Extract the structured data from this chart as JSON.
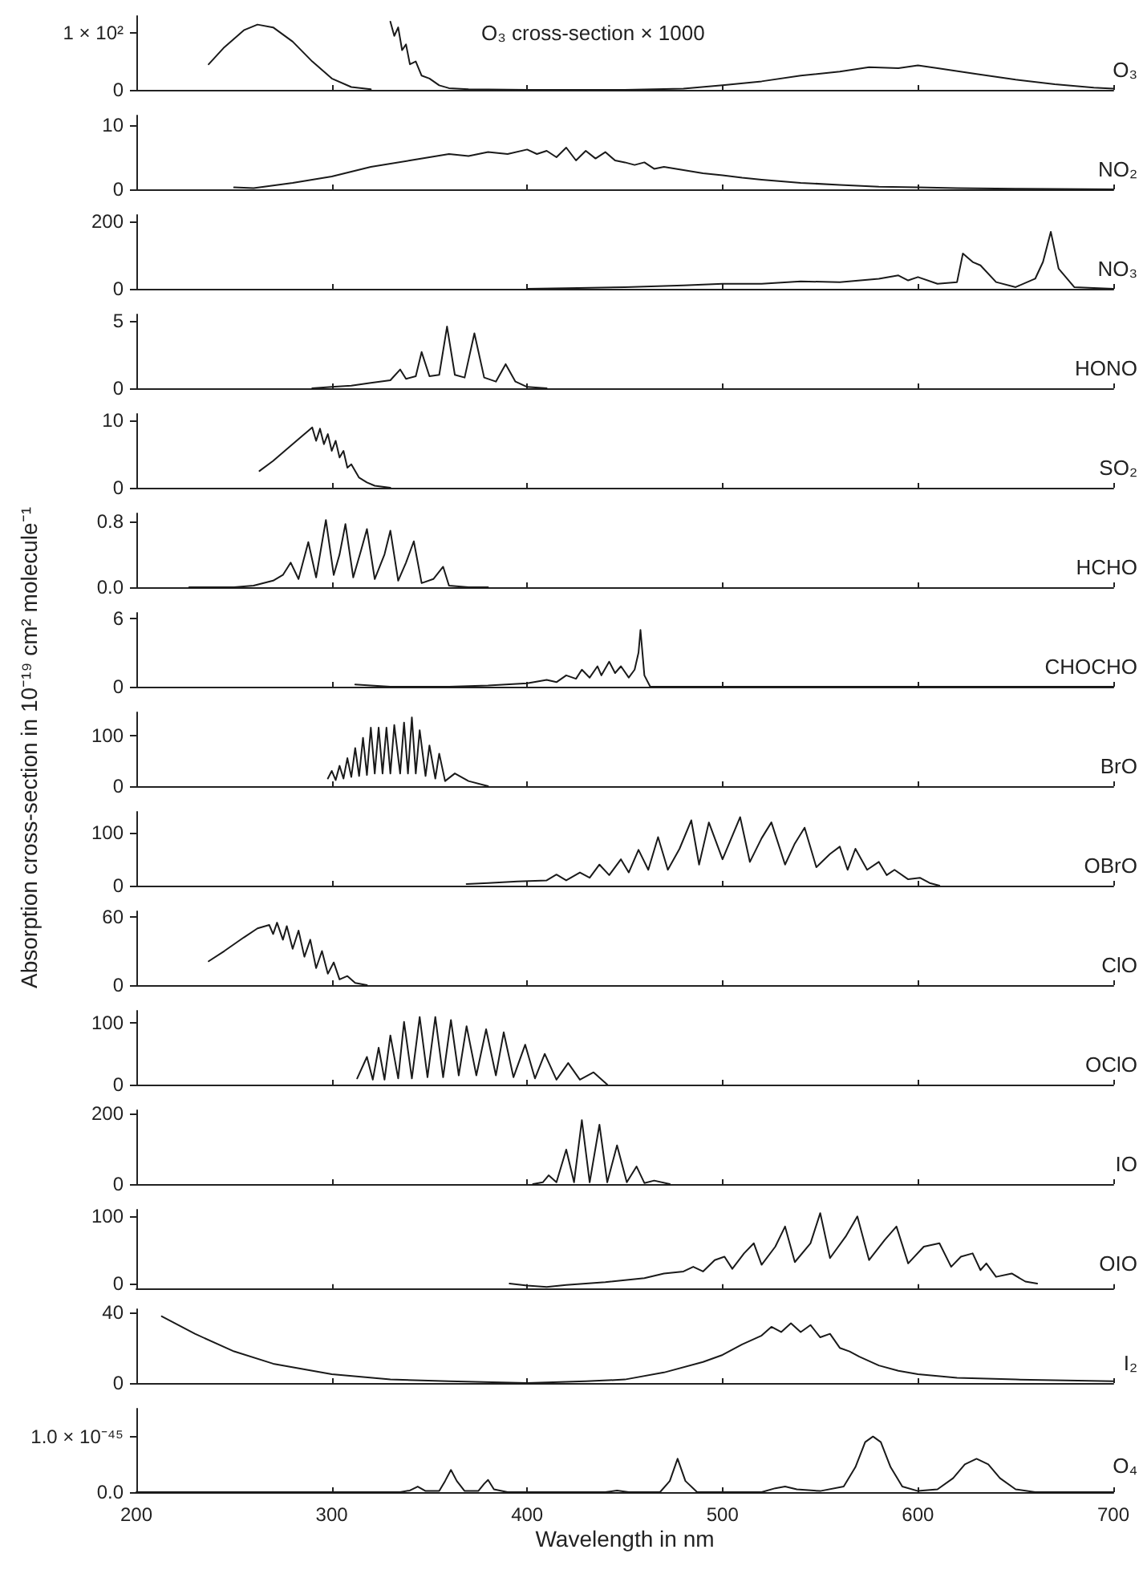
{
  "chart_data": [
    {
      "type": "line",
      "annotations": [
        "O₃ cross-section × 1000"
      ],
      "x": [
        237,
        245,
        255,
        262,
        270,
        280,
        290,
        300,
        310,
        320,
        329,
        330,
        332,
        334,
        336,
        338,
        340,
        343,
        346,
        350,
        355,
        360,
        370,
        400,
        450,
        480,
        500,
        520,
        540,
        560,
        575,
        590,
        600,
        610,
        630,
        650,
        670,
        690,
        700
      ],
      "series": [
        {
          "name": "O₃",
          "color": "#1a1a1a",
          "values": [
            45,
            75,
            105,
            115,
            110,
            85,
            50,
            20,
            5,
            1,
            null,
            120,
            95,
            110,
            70,
            80,
            45,
            50,
            25,
            20,
            8,
            3,
            1,
            0,
            0,
            2,
            8,
            15,
            25,
            32,
            40,
            38,
            43,
            38,
            28,
            18,
            10,
            4,
            2
          ]
        }
      ],
      "xlim": [
        200,
        700
      ],
      "xticks": [
        200,
        300,
        400,
        500,
        600,
        700
      ],
      "ylim": [
        0,
        130
      ],
      "yticks": [
        0,
        {
          "value": 100,
          "label": "1 × 10²"
        }
      ],
      "tick_labels": "y"
    },
    {
      "type": "line",
      "x": [
        250,
        260,
        280,
        300,
        320,
        340,
        350,
        360,
        370,
        380,
        390,
        400,
        405,
        410,
        415,
        420,
        425,
        430,
        435,
        440,
        445,
        450,
        455,
        460,
        465,
        470,
        480,
        490,
        500,
        510,
        520,
        540,
        560,
        580,
        600,
        620,
        650,
        700
      ],
      "series": [
        {
          "name": "NO₂",
          "color": "#1a1a1a",
          "values": [
            0.3,
            0.2,
            1,
            2,
            3.5,
            4.5,
            5,
            5.5,
            5.2,
            5.8,
            5.5,
            6.2,
            5.5,
            6,
            5,
            6.5,
            4.5,
            6,
            4.8,
            5.8,
            4.5,
            4.2,
            3.8,
            4.2,
            3.2,
            3.5,
            3,
            2.5,
            2.2,
            1.8,
            1.5,
            1,
            0.7,
            0.4,
            0.3,
            0.2,
            0.1,
            0
          ]
        }
      ],
      "xlim": [
        200,
        700
      ],
      "xticks": [
        200,
        300,
        400,
        500,
        600,
        700
      ],
      "ylim": [
        0,
        11.5
      ],
      "yticks": [
        0,
        10
      ],
      "tick_labels": "y"
    },
    {
      "type": "line",
      "x": [
        400,
        420,
        450,
        480,
        500,
        520,
        540,
        560,
        580,
        590,
        595,
        600,
        610,
        620,
        623,
        628,
        632,
        640,
        650,
        660,
        664,
        668,
        672,
        680,
        700
      ],
      "series": [
        {
          "name": "NO₃",
          "color": "#1a1a1a",
          "values": [
            0,
            2,
            5,
            10,
            15,
            15,
            22,
            20,
            30,
            40,
            25,
            35,
            15,
            20,
            105,
            80,
            70,
            20,
            5,
            30,
            80,
            170,
            60,
            5,
            0
          ]
        }
      ],
      "xlim": [
        200,
        700
      ],
      "xticks": [
        200,
        300,
        400,
        500,
        600,
        700
      ],
      "ylim": [
        0,
        220
      ],
      "yticks": [
        0,
        200
      ],
      "tick_labels": "y"
    },
    {
      "type": "line",
      "x": [
        290,
        300,
        310,
        320,
        330,
        335,
        338,
        343,
        346,
        350,
        355,
        359,
        363,
        368,
        373,
        378,
        384,
        389,
        394,
        400,
        410
      ],
      "series": [
        {
          "name": "HONO",
          "color": "#1a1a1a",
          "values": [
            0,
            0.1,
            0.2,
            0.4,
            0.6,
            1.4,
            0.7,
            0.9,
            2.7,
            0.9,
            1.0,
            4.6,
            1.0,
            0.8,
            4.1,
            0.8,
            0.5,
            1.8,
            0.5,
            0.1,
            0
          ]
        }
      ],
      "xlim": [
        200,
        700
      ],
      "xticks": [
        200,
        300,
        400,
        500,
        600,
        700
      ],
      "ylim": [
        0,
        5.5
      ],
      "yticks": [
        0,
        5
      ],
      "tick_labels": "y"
    },
    {
      "type": "line",
      "x": [
        263,
        270,
        278,
        284,
        288,
        290,
        292,
        294,
        296,
        298,
        300,
        302,
        304,
        306,
        308,
        310,
        314,
        318,
        322,
        330
      ],
      "series": [
        {
          "name": "SO₂",
          "color": "#1a1a1a",
          "values": [
            2.5,
            4,
            6,
            7.5,
            8.5,
            9,
            7,
            8.8,
            6.5,
            8,
            5.5,
            7,
            4.5,
            5.5,
            3,
            3.5,
            1.5,
            0.8,
            0.3,
            0
          ]
        }
      ],
      "xlim": [
        200,
        700
      ],
      "xticks": [
        200,
        300,
        400,
        500,
        600,
        700
      ],
      "ylim": [
        0,
        11
      ],
      "yticks": [
        0,
        10
      ],
      "tick_labels": "y"
    },
    {
      "type": "line",
      "x": [
        227,
        250,
        260,
        270,
        275,
        279,
        283,
        288,
        292,
        297,
        301,
        304,
        307,
        311,
        315,
        318,
        322,
        327,
        330,
        334,
        338,
        342,
        346,
        352,
        357,
        360,
        370,
        380
      ],
      "series": [
        {
          "name": "HCHO",
          "color": "#1a1a1a",
          "values": [
            0,
            0,
            0.02,
            0.08,
            0.15,
            0.3,
            0.1,
            0.55,
            0.12,
            0.82,
            0.15,
            0.4,
            0.77,
            0.12,
            0.45,
            0.71,
            0.1,
            0.4,
            0.69,
            0.08,
            0.3,
            0.56,
            0.05,
            0.1,
            0.25,
            0.02,
            0,
            0
          ]
        }
      ],
      "xlim": [
        200,
        700
      ],
      "xticks": [
        200,
        300,
        400,
        500,
        600,
        700
      ],
      "ylim": [
        0,
        0.9
      ],
      "yticks": [
        {
          "value": 0,
          "label": "0.0"
        },
        0.8
      ],
      "tick_labels": "y"
    },
    {
      "type": "line",
      "x": [
        312,
        320,
        330,
        360,
        380,
        400,
        410,
        415,
        420,
        425,
        428,
        432,
        436,
        438,
        442,
        445,
        448,
        452,
        455,
        457,
        458,
        460,
        463,
        700
      ],
      "series": [
        {
          "name": "CHOCHO",
          "color": "#1a1a1a",
          "values": [
            0.2,
            0.1,
            0,
            0,
            0.1,
            0.3,
            0.6,
            0.4,
            1.0,
            0.7,
            1.5,
            0.8,
            1.8,
            1.0,
            2.2,
            1.2,
            1.8,
            0.8,
            1.5,
            3,
            5,
            1,
            0,
            0
          ]
        }
      ],
      "xlim": [
        200,
        700
      ],
      "xticks": [
        200,
        300,
        400,
        500,
        600,
        700
      ],
      "ylim": [
        0,
        6.5
      ],
      "yticks": [
        0,
        6
      ],
      "tick_labels": "y"
    },
    {
      "type": "line",
      "ylabel": "Absorption cross-section in 10⁻¹⁹ cm² molecule⁻¹",
      "x": [
        298,
        300,
        302,
        304,
        306,
        308,
        310,
        312,
        314,
        316,
        318,
        320,
        322,
        324,
        326,
        328,
        330,
        332,
        335,
        337,
        339,
        341,
        343,
        345,
        348,
        350,
        353,
        355,
        358,
        363,
        370,
        380
      ],
      "series": [
        {
          "name": "BrO",
          "color": "#1a1a1a",
          "values": [
            15,
            30,
            12,
            40,
            15,
            55,
            18,
            75,
            20,
            95,
            22,
            115,
            25,
            115,
            25,
            115,
            25,
            120,
            25,
            125,
            25,
            135,
            25,
            110,
            20,
            80,
            15,
            64,
            10,
            25,
            10,
            0
          ]
        }
      ],
      "xlim": [
        200,
        700
      ],
      "xticks": [
        200,
        300,
        400,
        500,
        600,
        700
      ],
      "ylim": [
        0,
        145
      ],
      "yticks": [
        0,
        100
      ],
      "tick_labels": "y"
    },
    {
      "type": "line",
      "x": [
        369,
        380,
        395,
        410,
        415,
        420,
        427,
        432,
        437,
        442,
        448,
        452,
        457,
        462,
        467,
        472,
        478,
        484,
        488,
        493,
        500,
        509,
        514,
        520,
        525,
        532,
        537,
        542,
        548,
        555,
        560,
        564,
        568,
        574,
        580,
        584,
        588,
        595,
        601,
        606,
        611
      ],
      "series": [
        {
          "name": "OBrO",
          "color": "#1a1a1a",
          "values": [
            3,
            5,
            8,
            10,
            21,
            10,
            25,
            15,
            40,
            20,
            50,
            25,
            68,
            30,
            92,
            30,
            70,
            124,
            40,
            120,
            50,
            130,
            45,
            90,
            120,
            40,
            80,
            110,
            35,
            60,
            74,
            30,
            70,
            30,
            45,
            20,
            30,
            12,
            15,
            5,
            0
          ]
        }
      ],
      "xlim": [
        200,
        700
      ],
      "xticks": [
        200,
        300,
        400,
        500,
        600,
        700
      ],
      "ylim": [
        0,
        140
      ],
      "yticks": [
        0,
        100
      ],
      "tick_labels": "y"
    },
    {
      "type": "line",
      "x": [
        237,
        245,
        255,
        262,
        268,
        270,
        272,
        275,
        277,
        280,
        283,
        286,
        289,
        292,
        295,
        298,
        301,
        304,
        308,
        312,
        318
      ],
      "series": [
        {
          "name": "ClO",
          "color": "#1a1a1a",
          "values": [
            21,
            30,
            42,
            50,
            53,
            45,
            55,
            40,
            52,
            32,
            48,
            25,
            40,
            15,
            30,
            10,
            20,
            5,
            8,
            2,
            0
          ]
        }
      ],
      "xlim": [
        200,
        700
      ],
      "xticks": [
        200,
        300,
        400,
        500,
        600,
        700
      ],
      "ylim": [
        0,
        65
      ],
      "yticks": [
        0,
        60
      ],
      "tick_labels": "y"
    },
    {
      "type": "line",
      "x": [
        313,
        318,
        321,
        324,
        327,
        330,
        334,
        337,
        341,
        345,
        349,
        353,
        357,
        361,
        365,
        369,
        374,
        379,
        384,
        388,
        393,
        399,
        404,
        409,
        415,
        421,
        427,
        434,
        441
      ],
      "series": [
        {
          "name": "OClO",
          "color": "#1a1a1a",
          "values": [
            10,
            45,
            8,
            60,
            8,
            80,
            10,
            102,
            10,
            110,
            12,
            110,
            12,
            105,
            15,
            95,
            15,
            90,
            15,
            85,
            12,
            65,
            10,
            50,
            8,
            35,
            8,
            20,
            0
          ]
        }
      ],
      "xlim": [
        200,
        700
      ],
      "xticks": [
        200,
        300,
        400,
        500,
        600,
        700
      ],
      "ylim": [
        0,
        120
      ],
      "yticks": [
        0,
        100
      ],
      "tick_labels": "y"
    },
    {
      "type": "line",
      "x": [
        403,
        408,
        411,
        415,
        420,
        424,
        428,
        432,
        437,
        441,
        446,
        451,
        456,
        460,
        465,
        473
      ],
      "series": [
        {
          "name": "IO",
          "color": "#1a1a1a",
          "values": [
            0,
            5,
            25,
            5,
            98,
            5,
            182,
            5,
            169,
            5,
            110,
            5,
            50,
            3,
            10,
            0
          ]
        }
      ],
      "xlim": [
        200,
        700
      ],
      "xticks": [
        200,
        300,
        400,
        500,
        600,
        700
      ],
      "ylim": [
        0,
        210
      ],
      "yticks": [
        0,
        200
      ],
      "tick_labels": "y"
    },
    {
      "type": "line",
      "x": [
        391,
        400,
        410,
        420,
        440,
        460,
        470,
        480,
        485,
        490,
        496,
        501,
        505,
        511,
        516,
        520,
        527,
        532,
        537,
        545,
        550,
        555,
        563,
        569,
        575,
        583,
        589,
        595,
        603,
        611,
        617,
        622,
        628,
        632,
        635,
        640,
        648,
        655,
        661
      ],
      "series": [
        {
          "name": "OIO",
          "color": "#1a1a1a",
          "values": [
            0,
            -3,
            -5,
            -2,
            2,
            8,
            15,
            18,
            25,
            18,
            35,
            40,
            22,
            45,
            60,
            28,
            55,
            85,
            32,
            60,
            105,
            38,
            70,
            100,
            35,
            65,
            85,
            30,
            55,
            60,
            25,
            40,
            45,
            20,
            30,
            10,
            15,
            3,
            0
          ]
        }
      ],
      "xlim": [
        200,
        700
      ],
      "xticks": [
        200,
        300,
        400,
        500,
        600,
        700
      ],
      "ylim": [
        -8,
        110
      ],
      "yticks": [
        0,
        100
      ],
      "tick_labels": "y"
    },
    {
      "type": "line",
      "x": [
        213,
        230,
        250,
        270,
        300,
        330,
        360,
        400,
        430,
        450,
        470,
        490,
        500,
        510,
        520,
        525,
        530,
        535,
        540,
        545,
        550,
        555,
        560,
        565,
        570,
        580,
        590,
        600,
        620,
        650,
        700
      ],
      "series": [
        {
          "name": "I₂",
          "color": "#1a1a1a",
          "values": [
            38,
            28,
            18,
            11,
            5,
            2,
            1,
            0,
            1,
            2,
            6,
            12,
            16,
            22,
            27,
            32,
            29,
            34,
            29,
            33,
            26,
            28,
            20,
            18,
            15,
            10,
            7,
            5,
            3,
            2,
            1
          ]
        }
      ],
      "xlim": [
        200,
        700
      ],
      "xticks": [
        200,
        300,
        400,
        500,
        600,
        700
      ],
      "ylim": [
        0,
        42
      ],
      "yticks": [
        0,
        40
      ],
      "tick_labels": "y"
    },
    {
      "type": "line",
      "xlabel": "Wavelength in nm",
      "x": [
        200,
        335,
        340,
        344,
        348,
        355,
        358,
        361,
        364,
        368,
        375,
        378,
        380,
        383,
        390,
        440,
        446,
        452,
        468,
        473,
        477,
        481,
        487,
        520,
        527,
        532,
        538,
        550,
        562,
        568,
        573,
        577,
        581,
        586,
        592,
        600,
        610,
        618,
        624,
        630,
        636,
        642,
        650,
        660,
        700
      ],
      "series": [
        {
          "name": "O₄",
          "color": "#1a1a1a",
          "values": [
            0,
            0,
            3e-47,
            1e-46,
            2e-47,
            2e-47,
            2e-46,
            4e-46,
            2e-46,
            2e-47,
            2e-47,
            1.5e-46,
            2.2e-46,
            5e-47,
            0,
            0,
            3e-47,
            0,
            0,
            2e-46,
            6e-46,
            2e-46,
            0,
            0,
            7e-47,
            1e-46,
            5e-47,
            2e-47,
            1e-46,
            4.5e-46,
            9e-46,
            1e-45,
            9e-46,
            4.5e-46,
            1e-46,
            2e-47,
            5e-47,
            2.5e-46,
            5e-46,
            6e-46,
            5e-46,
            2.5e-46,
            5e-47,
            0,
            0
          ]
        }
      ],
      "xlim": [
        200,
        700
      ],
      "xticks": [
        200,
        300,
        400,
        500,
        600,
        700
      ],
      "ylim": [
        0,
        1.5e-45
      ],
      "yticks": [
        {
          "value": 0,
          "label": "0.0"
        },
        {
          "value": 1e-45,
          "label": "1.0 × 10⁻⁴⁵"
        }
      ]
    }
  ]
}
